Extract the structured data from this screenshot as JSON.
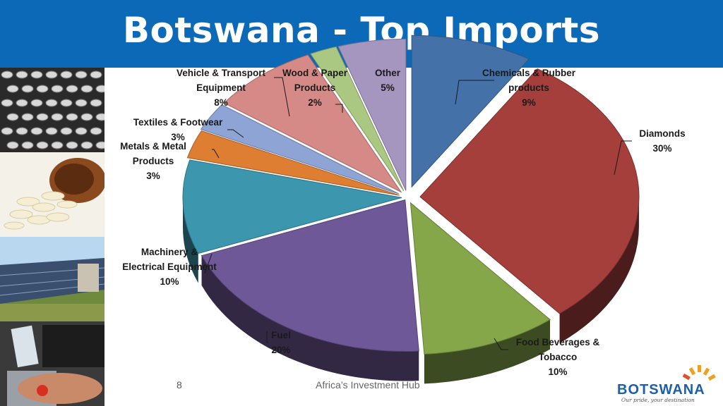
{
  "header": {
    "title": "Botswana - Top Imports",
    "background": "#0b69b8"
  },
  "footer": {
    "slide_number": "8",
    "text": "Africa’s Investment Hub"
  },
  "logo": {
    "word": "BOTSWANA",
    "tagline": "Our pride, your destination"
  },
  "photos": [
    "bottles-photo",
    "pills-photo",
    "solar-panels-photo",
    "atm-card-photo"
  ],
  "chart_data": {
    "type": "pie",
    "title": "Botswana - Top Imports",
    "slices": [
      {
        "label": [
          "Chemicals & Rubber",
          "products"
        ],
        "pct": "9%",
        "value": 9,
        "color": "#4472a8"
      },
      {
        "label": [
          "Diamonds"
        ],
        "pct": "30%",
        "value": 30,
        "color": "#a43f3c"
      },
      {
        "label": [
          "Food Beverages &",
          "Tobacco"
        ],
        "pct": "10%",
        "value": 10,
        "color": "#86a64a"
      },
      {
        "label": [
          "Fuel"
        ],
        "pct": "20%",
        "value": 20,
        "color": "#6e5898"
      },
      {
        "label": [
          "Machinery &",
          "Electrical Equipment"
        ],
        "pct": "10%",
        "value": 10,
        "color": "#3c97ae"
      },
      {
        "label": [
          "Metals & Metal",
          "Products"
        ],
        "pct": "3%",
        "value": 3,
        "color": "#dd7e32"
      },
      {
        "label": [
          "Textiles & Footwear"
        ],
        "pct": "3%",
        "value": 3,
        "color": "#8da4d4"
      },
      {
        "label": [
          "Vehicle & Transport",
          "Equipment"
        ],
        "pct": "8%",
        "value": 8,
        "color": "#d68a88"
      },
      {
        "label": [
          "Wood & Paper",
          "Products"
        ],
        "pct": "2%",
        "value": 2,
        "color": "#abc882"
      },
      {
        "label": [
          "Other"
        ],
        "pct": "5%",
        "value": 5,
        "color": "#a596bf"
      }
    ]
  }
}
